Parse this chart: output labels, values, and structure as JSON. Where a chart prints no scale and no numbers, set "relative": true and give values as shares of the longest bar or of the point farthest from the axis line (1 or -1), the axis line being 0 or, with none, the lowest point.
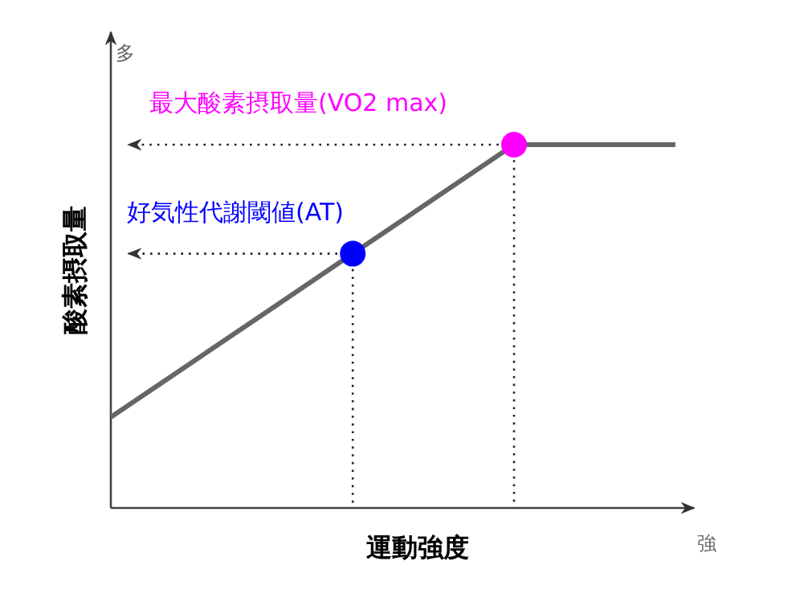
{
  "chart_data": {
    "type": "line",
    "relative": true,
    "xlabel": "運動強度",
    "ylabel": "酸素摂取量",
    "categories": [
      null,
      null,
      null,
      null,
      null,
      null,
      null,
      null
    ],
    "series": [
      {
        "color": "#666666",
        "values": [
          0.25,
          0.4,
          0.55,
          0.7,
          0.85,
          1,
          1,
          1
        ]
      },
      {
        "color": "#0000ff",
        "marker": "circle",
        "values": [
          null,
          null,
          null,
          0.7,
          null,
          null,
          null,
          null
        ]
      },
      {
        "color": "#ff00ff",
        "marker": "circle",
        "values": [
          null,
          null,
          null,
          null,
          null,
          1,
          null,
          null
        ]
      }
    ],
    "annotations": [
      "好気性代謝閾値(AT)",
      "最大酸素摂取量(VO2 max)",
      "多",
      "強"
    ]
  }
}
